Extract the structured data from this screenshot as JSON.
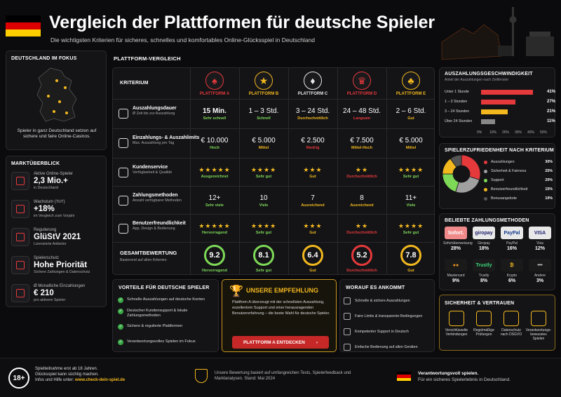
{
  "header": {
    "title": "Vergleich der Plattformen für deutsche Spieler",
    "subtitle": "Die wichtigsten Kriterien für sicheres, schnelles und komfortables Online-Glücksspiel in Deutschland"
  },
  "focus": {
    "heading": "DEUTSCHLAND IM FOKUS",
    "text": "Spieler in ganz Deutschland setzen auf sichere und faire Online-Casinos."
  },
  "market": {
    "heading": "MARKTÜBERBLICK",
    "items": [
      {
        "icon": "users-icon",
        "title": "Aktive Online-Spieler",
        "value": "2,3 Mio.+",
        "sub": "in Deutschland"
      },
      {
        "icon": "bar-chart-icon",
        "title": "Wachstum (YoY)",
        "value": "+18%",
        "sub": "im Vergleich zum Vorjahr"
      },
      {
        "icon": "shield-check-icon",
        "title": "Regulierung",
        "value": "GlüStV 2021",
        "sub": "Lizenzierte Anbieter"
      },
      {
        "icon": "lock-icon",
        "title": "Spielerschutz",
        "value": "Hohe Priorität",
        "sub": "Sichere Zahlungen & Datenschutz"
      },
      {
        "icon": "euro-icon",
        "title": "Ø Monatliche Einzahlungen",
        "value": "€ 210",
        "sub": "pro aktivem Spieler"
      }
    ]
  },
  "comparison": {
    "heading": "PLATTFORM-VERGLEICH",
    "criteria_label": "KRITERIUM",
    "platforms": [
      {
        "name": "PLATTFORM A",
        "symbol": "♠",
        "color": "#e5393b"
      },
      {
        "name": "PLATTFORM B",
        "symbol": "★",
        "color": "#f2b81e"
      },
      {
        "name": "PLATTFORM C",
        "symbol": "♦",
        "color": "#e8e8e8"
      },
      {
        "name": "PLATTFORM D",
        "symbol": "♛",
        "color": "#e5393b"
      },
      {
        "name": "PLATTFORM E",
        "symbol": "♣",
        "color": "#f2b81e"
      }
    ],
    "rows": [
      {
        "icon": "clock-icon",
        "title": "Auszahlungsdauer",
        "sub": "Ø Zeit bis zur Auszahlung",
        "cells": [
          {
            "value": "15 Min.",
            "rating": "Sehr schnell",
            "color": "#7ed957",
            "bold": true
          },
          {
            "value": "1 – 3 Std.",
            "rating": "Schnell",
            "color": "#7ed957"
          },
          {
            "value": "3 – 24 Std.",
            "rating": "Durchschnittlich",
            "color": "#f2b81e"
          },
          {
            "value": "24 – 48 Std.",
            "rating": "Langsam",
            "color": "#e5393b"
          },
          {
            "value": "2 – 6 Std.",
            "rating": "Gut",
            "color": "#f2b81e"
          }
        ]
      },
      {
        "icon": "money-icon",
        "title": "Einzahlungs- & Auszahlimits",
        "sub": "Max. Auszahlung pro Tag",
        "cells": [
          {
            "value": "€ 10.000",
            "rating": "Hoch",
            "color": "#7ed957"
          },
          {
            "value": "€ 5.000",
            "rating": "Mittel",
            "color": "#f2b81e"
          },
          {
            "value": "€ 2.500",
            "rating": "Niedrig",
            "color": "#e5393b"
          },
          {
            "value": "€ 7.500",
            "rating": "Mittel-Hoch",
            "color": "#f2b81e"
          },
          {
            "value": "€ 5.000",
            "rating": "Mittel",
            "color": "#f2b81e"
          }
        ]
      },
      {
        "icon": "headset-icon",
        "title": "Kundenservice",
        "sub": "Verfügbarkeit & Qualität",
        "cells": [
          {
            "stars": "★★★★★",
            "rating": "Ausgezeichnet",
            "color": "#7ed957"
          },
          {
            "stars": "★★★★",
            "rating": "Sehr gut",
            "color": "#7ed957"
          },
          {
            "stars": "★★★",
            "rating": "Gut",
            "color": "#f2b81e"
          },
          {
            "stars": "★★",
            "rating": "Durchschnittlich",
            "color": "#e5393b"
          },
          {
            "stars": "★★★★",
            "rating": "Sehr gut",
            "color": "#7ed957"
          }
        ]
      },
      {
        "icon": "card-icon",
        "title": "Zahlungsmethoden",
        "sub": "Anzahl verfügbarer Methoden",
        "cells": [
          {
            "value": "12+",
            "rating": "Sehr viele",
            "color": "#7ed957"
          },
          {
            "value": "10",
            "rating": "Viele",
            "color": "#7ed957"
          },
          {
            "value": "7",
            "rating": "Ausreichend",
            "color": "#f2b81e"
          },
          {
            "value": "8",
            "rating": "Ausreichend",
            "color": "#f2b81e"
          },
          {
            "value": "11+",
            "rating": "Viele",
            "color": "#7ed957"
          }
        ]
      },
      {
        "icon": "mobile-icon",
        "title": "Benutzerfreundlichkeit",
        "sub": "App, Design & Bedienung",
        "cells": [
          {
            "stars": "★★★★★",
            "rating": "Hervorragend",
            "color": "#7ed957"
          },
          {
            "stars": "★★★★",
            "rating": "Sehr gut",
            "color": "#7ed957"
          },
          {
            "stars": "★★★",
            "rating": "Gut",
            "color": "#f2b81e"
          },
          {
            "stars": "★★",
            "rating": "Durchschnittlich",
            "color": "#e5393b"
          },
          {
            "stars": "★★★★",
            "rating": "Sehr gut",
            "color": "#7ed957"
          }
        ]
      }
    ],
    "overall": {
      "title": "GESAMTBEWERTUNG",
      "sub": "Basierend auf allen Kriterien",
      "scores": [
        {
          "value": "9.2",
          "rating": "Hervorragend",
          "color": "#7ed957"
        },
        {
          "value": "8.1",
          "rating": "Sehr gut",
          "color": "#7ed957"
        },
        {
          "value": "6.4",
          "rating": "Gut",
          "color": "#f2b81e"
        },
        {
          "value": "5.2",
          "rating": "Durchschnittlich",
          "color": "#e5393b"
        },
        {
          "value": "7.8",
          "rating": "Gut",
          "color": "#f2b81e"
        }
      ]
    }
  },
  "speed": {
    "heading": "AUSZAHLUNGSGESCHWINDIGKEIT",
    "sub": "Anteil der Auszahlungen nach Zeitfenster",
    "chart_data": {
      "type": "bar",
      "categories": [
        "Unter 1 Stunde",
        "1 – 3 Stunden",
        "3 – 24 Stunden",
        "Über 24 Stunden"
      ],
      "values": [
        41,
        27,
        21,
        11
      ],
      "labels": [
        "41%",
        "27%",
        "21%",
        "11%"
      ],
      "colors": [
        "#e5393b",
        "#e5393b",
        "#f2b81e",
        "#888888"
      ],
      "ticks": [
        "0%",
        "10%",
        "20%",
        "30%",
        "40%",
        "50%"
      ],
      "xlim": [
        0,
        50
      ]
    }
  },
  "satisfaction": {
    "heading": "SPIELERZUFRIEDENHEIT NACH KRITERIUM",
    "chart_data": {
      "type": "pie",
      "labels": [
        "Auszahlungen",
        "Sicherheit & Fairness",
        "Support",
        "Benutzerfreundlichkeit",
        "Bonusangebote"
      ],
      "values": [
        30,
        25,
        20,
        15,
        10
      ],
      "value_labels": [
        "30%",
        "25%",
        "20%",
        "15%",
        "10%"
      ],
      "colors": [
        "#e5393b",
        "#a0a0a0",
        "#7ed957",
        "#f2b81e",
        "#555555"
      ]
    }
  },
  "payments": {
    "heading": "BELIEBTE ZAHLUNGSMETHODEN",
    "items": [
      {
        "logo": "Sofort.",
        "name": "Sofortüberweisung",
        "pct": "28%",
        "bg": "#f08a8a",
        "fg": "#fff"
      },
      {
        "logo": "giropay",
        "name": "Giropay",
        "pct": "18%",
        "bg": "#e8e8e8",
        "fg": "#1a1a6a"
      },
      {
        "logo": "PayPal",
        "name": "PayPal",
        "pct": "16%",
        "bg": "#e8e8e8",
        "fg": "#123a8c"
      },
      {
        "logo": "VISA",
        "name": "Visa",
        "pct": "12%",
        "bg": "#e8e8e8",
        "fg": "#1a1f71"
      },
      {
        "logo": "●●",
        "name": "Mastercard",
        "pct": "9%",
        "bg": "#1a1a1a",
        "fg": "#f29a1e"
      },
      {
        "logo": "Trustly",
        "name": "Trustly",
        "pct": "8%",
        "bg": "#1a1a1a",
        "fg": "#3cd77a"
      },
      {
        "logo": "₿",
        "name": "Krypto",
        "pct": "6%",
        "bg": "#1a1a1a",
        "fg": "#f2b81e"
      },
      {
        "logo": "•••",
        "name": "Andere",
        "pct": "3%",
        "bg": "#1a1a1a",
        "fg": "#ddd"
      }
    ]
  },
  "security": {
    "heading": "SICHERHEIT & VERTRAUEN",
    "items": [
      {
        "icon": "shield-plus-icon",
        "text": "Verschlüsselte Verbindungen"
      },
      {
        "icon": "award-icon",
        "text": "Regelmäßige Prüfungen"
      },
      {
        "icon": "padlock-icon",
        "text": "Datenschutz nach DSGVO"
      },
      {
        "icon": "user-icon",
        "text": "Verantwortungs-bewusstes Spielen"
      }
    ]
  },
  "advantages": {
    "heading": "VORTEILE FÜR DEUTSCHE SPIELER",
    "items": [
      "Schnelle Auszahlungen auf deutsche Konten",
      "Deutscher Kundensupport & lokale Zahlungsmethoden",
      "Sichere & regulierte Plattformen",
      "Verantwortungsvolles Spielen im Fokus"
    ]
  },
  "recommendation": {
    "heading": "UNSERE EMPFEHLUNG",
    "text": "Plattform A überzeugt mit der schnellsten Auszahlung, exzellentem Support und einer herausragenden Benutzererfahrung – die beste Wahl für deutsche Spieler.",
    "button": "PLATTFORM A ENTDECKEN"
  },
  "matters": {
    "heading": "WORAUF ES ANKOMMT",
    "items": [
      "Schnelle & sichere Auszahlungen",
      "Faire Limits & transparente Bedingungen",
      "Kompetenter Support in Deutsch",
      "Einfache Bedienung auf allen Geräten"
    ]
  },
  "footer": {
    "age": "18+",
    "age_text1": "Spielteilnahme erst ab 18 Jahren.",
    "age_text2": "Glücksspiel kann süchtig machen.",
    "age_text3": "Infos und Hilfe unter:",
    "age_link": "www.check-dein-spiel.de",
    "note": "Unsere Bewertung basiert auf umfangreichen Tests, Spielerfeedback und Marktanalysen. Stand: Mai 2024",
    "resp_title": "Verantwortungsvoll spielen.",
    "resp_text": "Für ein sicheres Spielerlebnis in Deutschland."
  }
}
